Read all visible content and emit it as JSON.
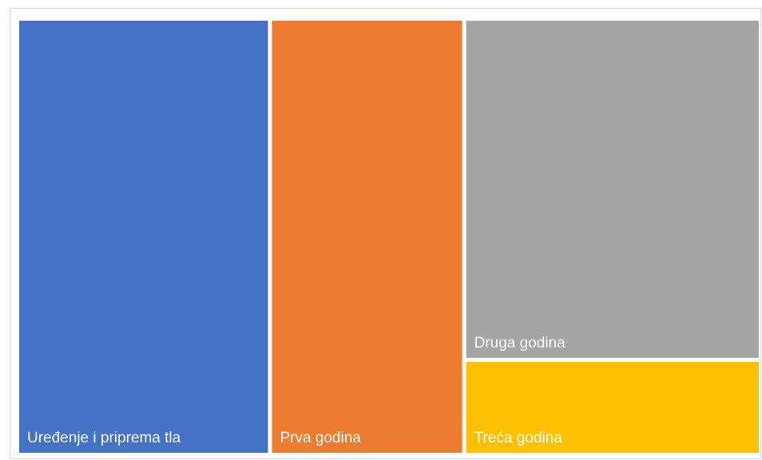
{
  "chart_data": {
    "type": "treemap",
    "title": "",
    "items": [
      {
        "label": "Uređenje i priprema tla",
        "value": 34.0,
        "color": "#4472C4"
      },
      {
        "label": "Prva godina",
        "value": 26.0,
        "color": "#ED7D31"
      },
      {
        "label": "Druga godina",
        "value": 31.5,
        "color": "#A5A5A5"
      },
      {
        "label": "Treća godina",
        "value": 8.5,
        "color": "#FFC000"
      }
    ]
  }
}
